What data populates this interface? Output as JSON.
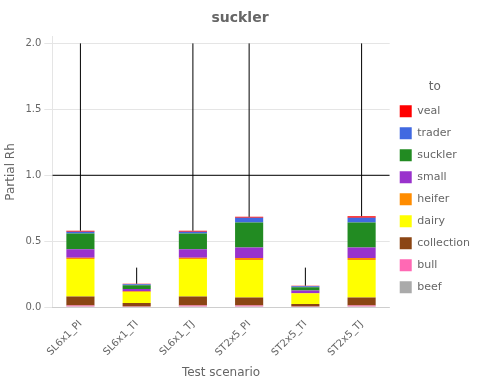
{
  "chart_data": {
    "type": "bar",
    "title": "suckler",
    "xlabel": "Test scenario",
    "ylabel": "Partial Rh",
    "categories": [
      "SL6x1_PI",
      "SL6x1_TI",
      "SL6x1_TJ",
      "ST2x5_PI",
      "ST2x5_TI",
      "ST2x5_TJ"
    ],
    "stacked": true,
    "series": [
      {
        "name": "beef",
        "color": "#aaaaaa",
        "values": [
          0.005,
          0.003,
          0.005,
          0.005,
          0.003,
          0.005
        ]
      },
      {
        "name": "bull",
        "color": "#ff69b4",
        "values": [
          0.008,
          0.003,
          0.008,
          0.008,
          0.003,
          0.008
        ]
      },
      {
        "name": "collection",
        "color": "#8B4513",
        "values": [
          0.068,
          0.025,
          0.068,
          0.06,
          0.018,
          0.06
        ]
      },
      {
        "name": "dairy",
        "color": "#ffff00",
        "values": [
          0.285,
          0.085,
          0.285,
          0.285,
          0.08,
          0.285
        ]
      },
      {
        "name": "heifer",
        "color": "#ff8c00",
        "values": [
          0.008,
          0.004,
          0.008,
          0.015,
          0.004,
          0.015
        ]
      },
      {
        "name": "small",
        "color": "#9932cc",
        "values": [
          0.065,
          0.018,
          0.065,
          0.08,
          0.018,
          0.08
        ]
      },
      {
        "name": "suckler",
        "color": "#228b22",
        "values": [
          0.12,
          0.028,
          0.12,
          0.19,
          0.025,
          0.19
        ]
      },
      {
        "name": "trader",
        "color": "#4169e1",
        "values": [
          0.012,
          0.008,
          0.012,
          0.035,
          0.008,
          0.035
        ]
      },
      {
        "name": "veal",
        "color": "#ff0000",
        "values": [
          0.009,
          0.004,
          0.009,
          0.007,
          0.004,
          0.012
        ]
      }
    ],
    "whisker_top": [
      2.0,
      0.3,
      2.0,
      2.0,
      0.3,
      2.0
    ],
    "hline_y": 1.0,
    "ylim": [
      0,
      2.05
    ],
    "yticks": [
      {
        "value": 0,
        "label": "0.0"
      },
      0.5,
      {
        "value": 1,
        "label": "1.0"
      },
      1.5,
      {
        "value": 2,
        "label": "2.0"
      }
    ],
    "grid": true,
    "legend": "right",
    "legend_title": "to"
  }
}
